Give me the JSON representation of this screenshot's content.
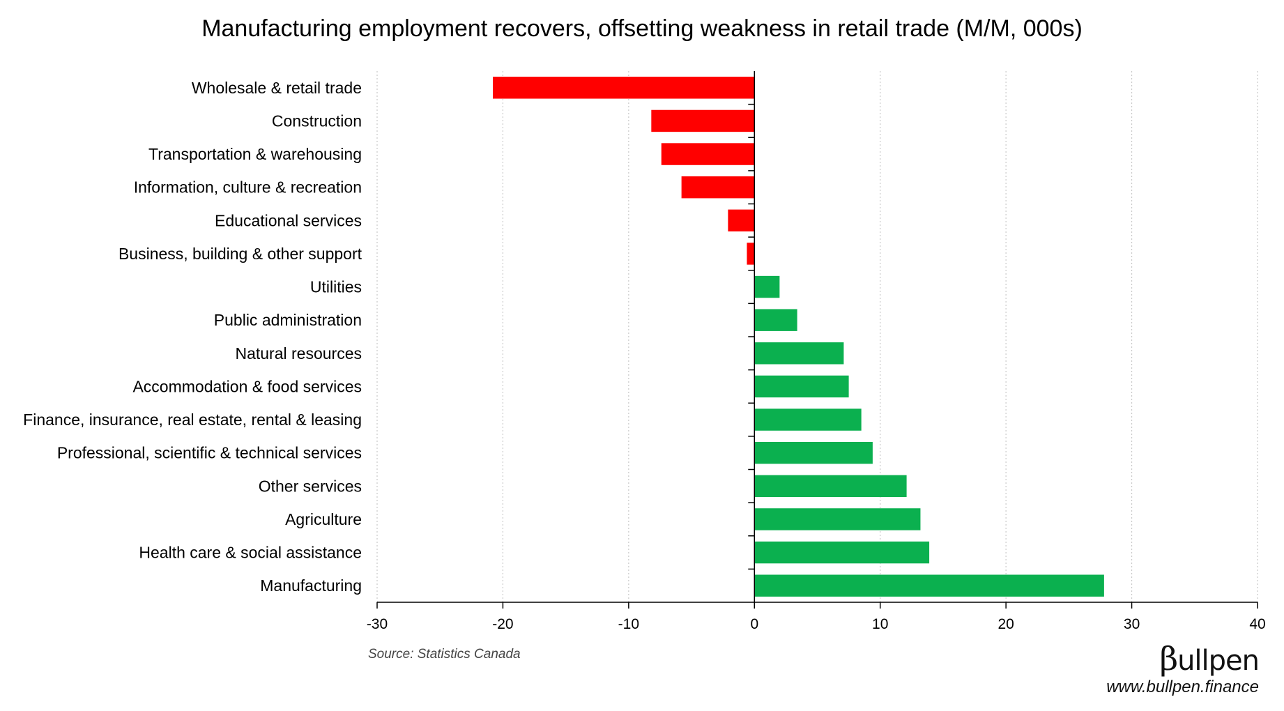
{
  "chart_data": {
    "type": "bar",
    "orientation": "horizontal",
    "title": "Manufacturing employment recovers, offsetting weakness in retail trade (M/M, 000s)",
    "categories": [
      "Wholesale & retail trade",
      "Construction",
      "Transportation & warehousing",
      "Information, culture & recreation",
      "Educational services",
      "Business, building & other support",
      "Utilities",
      "Public administration",
      "Natural resources",
      "Accommodation & food services",
      "Finance, insurance, real estate, rental & leasing",
      "Professional, scientific & technical services",
      "Other services",
      "Agriculture",
      "Health care & social assistance",
      "Manufacturing"
    ],
    "values": [
      -20.8,
      -8.2,
      -7.4,
      -5.8,
      -2.1,
      -0.6,
      2.0,
      3.4,
      7.1,
      7.5,
      8.5,
      9.4,
      12.1,
      13.2,
      13.9,
      27.8
    ],
    "xlim": [
      -30,
      40
    ],
    "xticks": [
      -30,
      -20,
      -10,
      0,
      10,
      20,
      30,
      40
    ],
    "grid": "vertical dotted",
    "negative_color": "#ff0000",
    "positive_color": "#0bb04f",
    "xlabel": "",
    "ylabel": ""
  },
  "footer": {
    "source": "Source: Statistics Canada",
    "logo_beta": "β",
    "logo_text": "ullpen",
    "url": "www.bullpen.finance"
  }
}
